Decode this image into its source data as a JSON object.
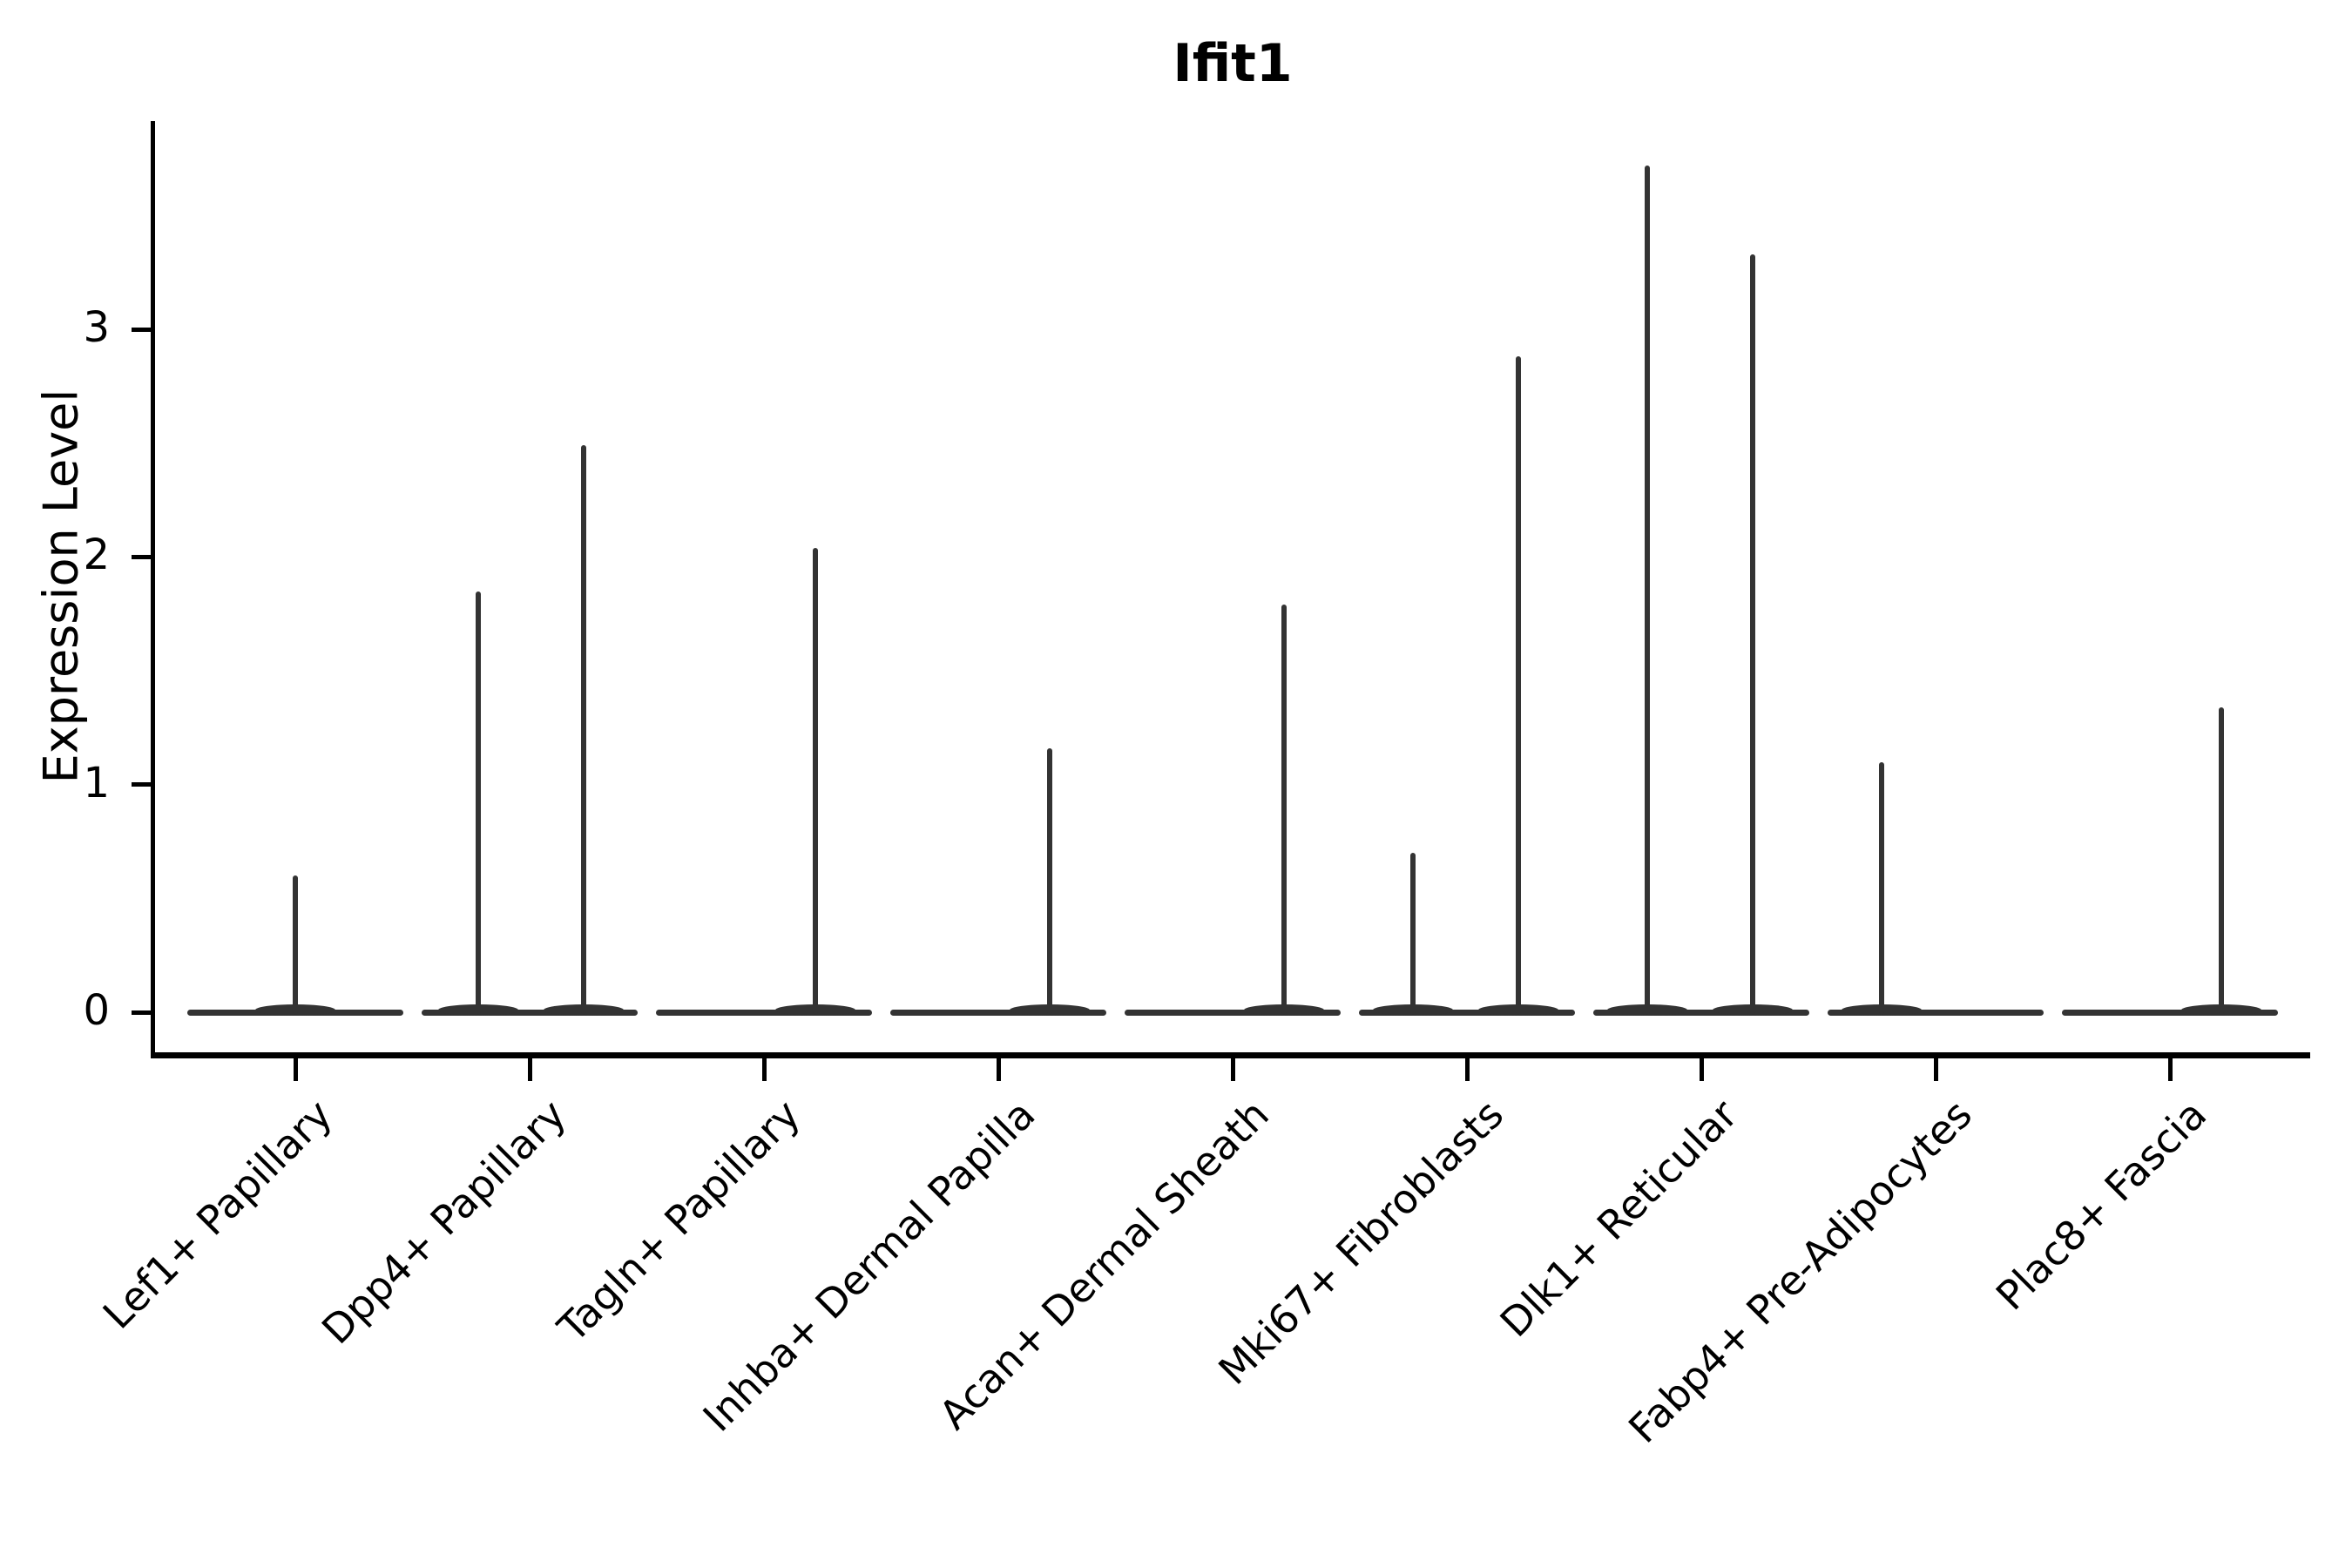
{
  "style": {
    "background": "#ffffff",
    "axis_color": "#000000",
    "violin_color": "#333333",
    "text_color": "#000000"
  },
  "chart_data": {
    "type": "violin",
    "title": "Ifit1",
    "xlabel": "",
    "ylabel": "Expression Level",
    "ylim": [
      0,
      3.9
    ],
    "yticks": [
      0,
      1,
      2,
      3
    ],
    "grid": false,
    "legend": null,
    "x_tick_rotation": 45,
    "spines": [
      "left",
      "bottom"
    ],
    "categories": [
      "Lef1+ Papillary",
      "Dpp4+ Papillary",
      "Tagln+ Papillary",
      "Inhba+ Dermal Papilla",
      "Acan+ Dermal Sheath",
      "Mki67+ Fibroblasts",
      "Dlk1+ Reticular",
      "Fabp4+ Pre-Adipocytes",
      "Plac8+ Fascia"
    ],
    "description": "Violin plot of Ifit1 expression per fibroblast cluster; each violin collapses to a flat bar at 0 with thin spikes up to the maximum expressing cells",
    "baseline_value": 0,
    "series": [
      {
        "category": "Lef1+ Papillary",
        "spikes": [
          {
            "offset": 0.0,
            "max": 0.6
          }
        ]
      },
      {
        "category": "Dpp4+ Papillary",
        "spikes": [
          {
            "offset": -0.22,
            "max": 1.85
          },
          {
            "offset": 0.23,
            "max": 2.49
          }
        ]
      },
      {
        "category": "Tagln+ Papillary",
        "spikes": [
          {
            "offset": 0.22,
            "max": 2.04
          }
        ]
      },
      {
        "category": "Inhba+ Dermal Papilla",
        "spikes": [
          {
            "offset": 0.22,
            "max": 1.16
          }
        ]
      },
      {
        "category": "Acan+ Dermal Sheath",
        "spikes": [
          {
            "offset": 0.22,
            "max": 1.79
          }
        ]
      },
      {
        "category": "Mki67+ Fibroblasts",
        "spikes": [
          {
            "offset": -0.23,
            "max": 0.7
          },
          {
            "offset": 0.22,
            "max": 2.88
          }
        ]
      },
      {
        "category": "Dlk1+ Reticular",
        "spikes": [
          {
            "offset": -0.23,
            "max": 3.72
          },
          {
            "offset": 0.22,
            "max": 3.33
          }
        ]
      },
      {
        "category": "Fabp4+ Pre-Adipocytes",
        "spikes": [
          {
            "offset": -0.23,
            "max": 1.1
          }
        ]
      },
      {
        "category": "Plac8+ Fascia",
        "spikes": [
          {
            "offset": 0.22,
            "max": 1.34
          }
        ]
      }
    ]
  }
}
